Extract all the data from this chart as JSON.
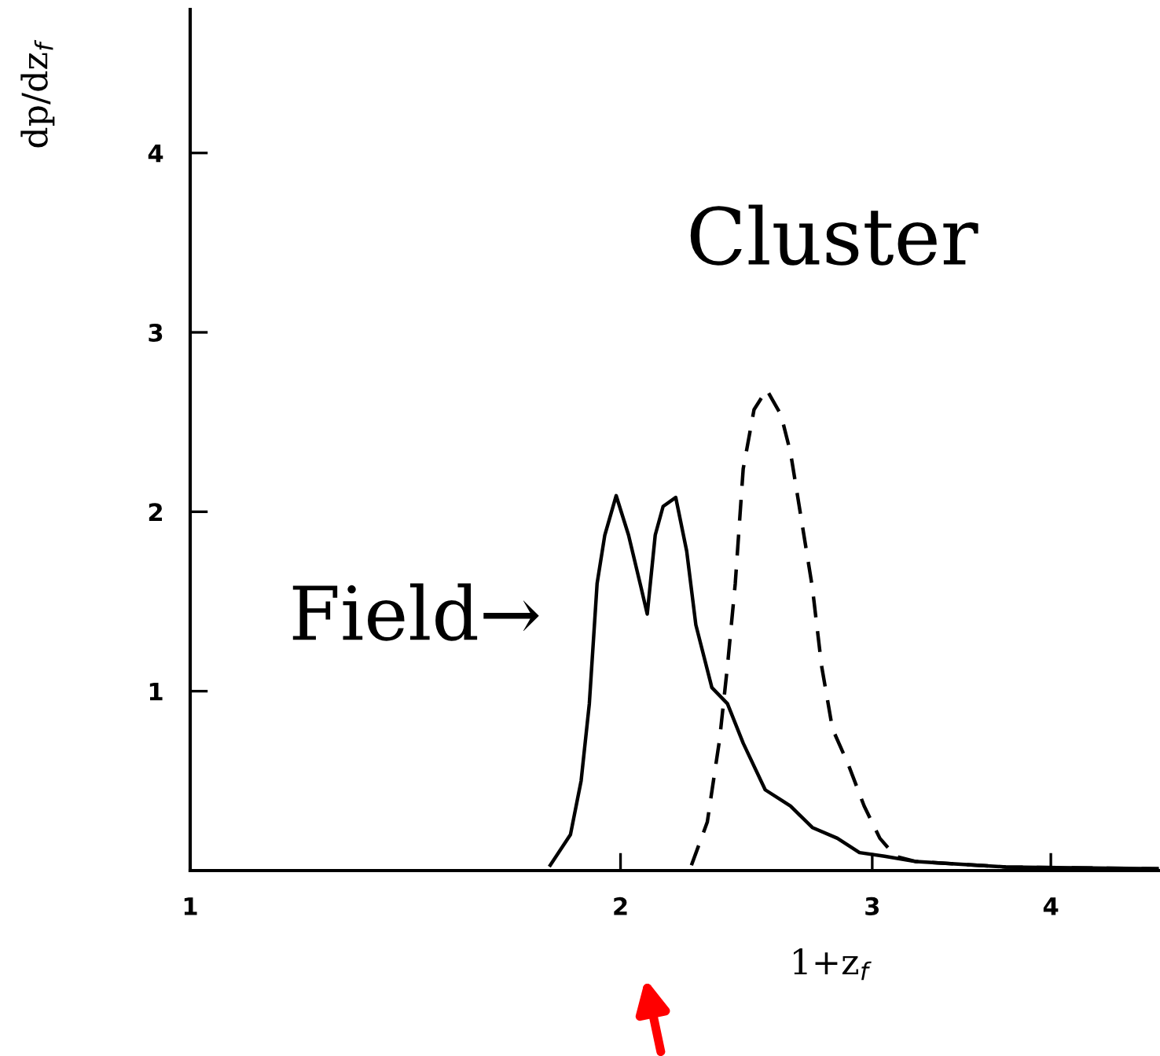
{
  "chart_data": {
    "type": "line",
    "xlabel": "1+z$_{f}$",
    "ylabel": "dp/dz$_{f}$",
    "log": "x",
    "xlim": [
      1,
      4.76
    ],
    "xticks": [
      1,
      2,
      3,
      4
    ],
    "ylim": [
      0,
      4.8
    ],
    "yticks": [
      1,
      2,
      3,
      4
    ],
    "grid": false,
    "legend": false,
    "marker": "none",
    "series": [
      {
        "name": "Field→",
        "color": "#000000",
        "line_style": "solid",
        "x": [
          1.786,
          1.845,
          1.877,
          1.902,
          1.926,
          1.95,
          1.986,
          2.026,
          2.067,
          2.088,
          2.115,
          2.142,
          2.186,
          2.225,
          2.258,
          2.317,
          2.376,
          2.437,
          2.525,
          2.63,
          2.724,
          2.836,
          2.939,
          3.06,
          3.22,
          3.72,
          4.76
        ],
        "values": [
          0.03,
          0.2,
          0.5,
          0.93,
          1.6,
          1.87,
          2.09,
          1.87,
          1.58,
          1.43,
          1.87,
          2.03,
          2.08,
          1.78,
          1.37,
          1.02,
          0.93,
          0.71,
          0.45,
          0.36,
          0.24,
          0.18,
          0.1,
          0.08,
          0.05,
          0.02,
          0.01
        ]
      },
      {
        "name": "Cluster",
        "color": "#000000",
        "line_style": "dashed",
        "x": [
          2.242,
          2.3,
          2.346,
          2.376,
          2.406,
          2.437,
          2.48,
          2.531,
          2.59,
          2.63,
          2.676,
          2.724,
          2.765,
          2.814,
          2.887,
          2.961,
          3.037,
          3.114,
          3.22,
          3.72,
          4.76
        ],
        "values": [
          0.03,
          0.27,
          0.73,
          1.14,
          1.6,
          2.24,
          2.57,
          2.68,
          2.54,
          2.33,
          1.96,
          1.58,
          1.14,
          0.79,
          0.59,
          0.36,
          0.18,
          0.08,
          0.05,
          0.02,
          0.01
        ]
      }
    ]
  }
}
